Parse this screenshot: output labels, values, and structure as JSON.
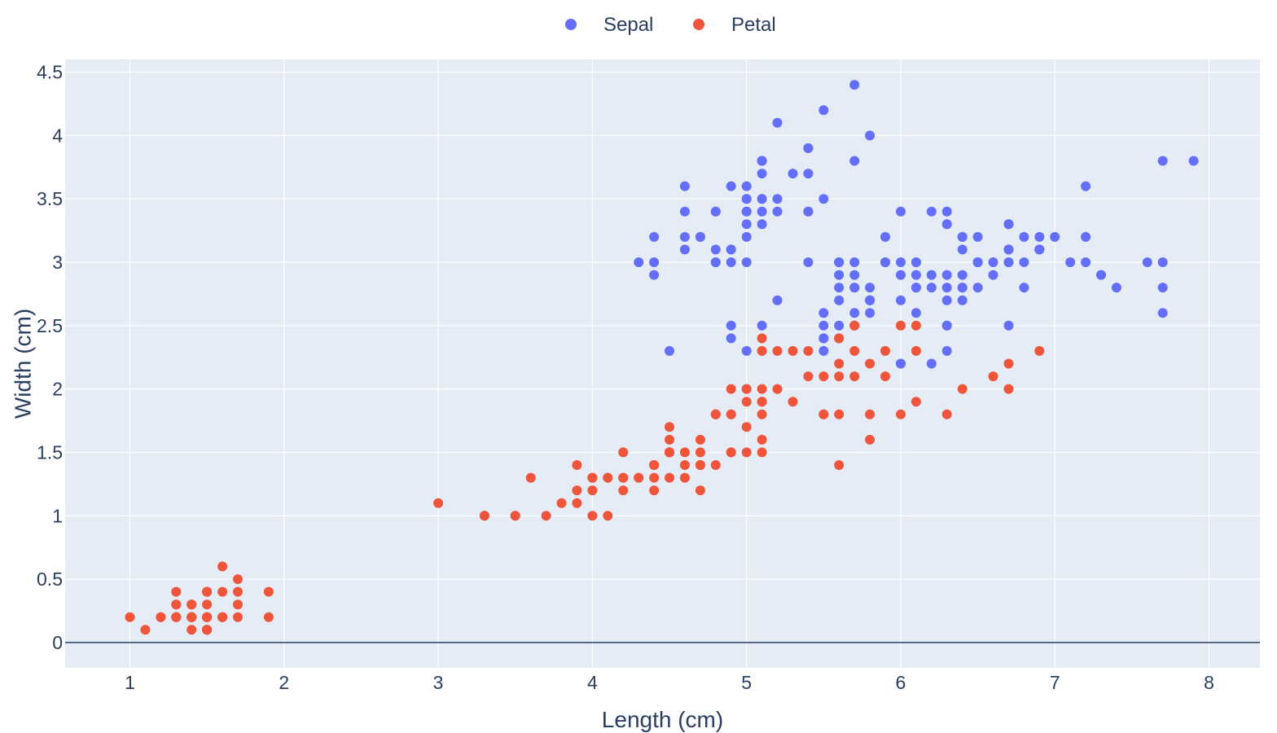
{
  "chart_data": {
    "type": "scatter",
    "xlabel": "Length (cm)",
    "ylabel": "Width (cm)",
    "xlim": [
      0.58,
      8.33
    ],
    "ylim": [
      -0.2,
      4.6
    ],
    "x_ticks": [
      1,
      2,
      3,
      4,
      5,
      6,
      7,
      8
    ],
    "y_ticks": [
      0,
      0.5,
      1,
      1.5,
      2,
      2.5,
      3,
      3.5,
      4,
      4.5
    ],
    "y_tick_labels": [
      "0",
      "0.5",
      "1",
      "1.5",
      "2",
      "2.5",
      "3",
      "3.5",
      "4",
      "4.5"
    ],
    "grid": true,
    "legend_position": "top-center",
    "colors": {
      "plot_bg": "#e5ecf6",
      "grid": "#ffffff",
      "zeroline": "#2a3f5f",
      "text": "#2a3f5f"
    },
    "series": [
      {
        "name": "Sepal",
        "color": "#636efa",
        "points": [
          [
            5.1,
            3.5
          ],
          [
            4.9,
            3.0
          ],
          [
            4.7,
            3.2
          ],
          [
            4.6,
            3.1
          ],
          [
            5.0,
            3.6
          ],
          [
            5.4,
            3.9
          ],
          [
            4.6,
            3.4
          ],
          [
            5.0,
            3.4
          ],
          [
            4.4,
            2.9
          ],
          [
            4.9,
            3.1
          ],
          [
            5.4,
            3.7
          ],
          [
            4.8,
            3.4
          ],
          [
            4.8,
            3.0
          ],
          [
            4.3,
            3.0
          ],
          [
            5.8,
            4.0
          ],
          [
            5.7,
            4.4
          ],
          [
            5.4,
            3.9
          ],
          [
            5.1,
            3.5
          ],
          [
            5.7,
            3.8
          ],
          [
            5.1,
            3.8
          ],
          [
            5.4,
            3.4
          ],
          [
            5.1,
            3.7
          ],
          [
            4.6,
            3.6
          ],
          [
            5.1,
            3.3
          ],
          [
            4.8,
            3.4
          ],
          [
            5.0,
            3.0
          ],
          [
            5.0,
            3.4
          ],
          [
            5.2,
            3.5
          ],
          [
            5.2,
            3.4
          ],
          [
            4.7,
            3.2
          ],
          [
            4.8,
            3.1
          ],
          [
            5.4,
            3.4
          ],
          [
            5.2,
            4.1
          ],
          [
            5.5,
            4.2
          ],
          [
            4.9,
            3.1
          ],
          [
            5.0,
            3.2
          ],
          [
            5.5,
            3.5
          ],
          [
            4.9,
            3.6
          ],
          [
            4.4,
            3.0
          ],
          [
            5.1,
            3.4
          ],
          [
            5.0,
            3.5
          ],
          [
            4.5,
            2.3
          ],
          [
            4.4,
            3.2
          ],
          [
            5.0,
            3.5
          ],
          [
            5.1,
            3.8
          ],
          [
            4.8,
            3.0
          ],
          [
            5.1,
            3.8
          ],
          [
            4.6,
            3.2
          ],
          [
            5.3,
            3.7
          ],
          [
            5.0,
            3.3
          ],
          [
            7.0,
            3.2
          ],
          [
            6.4,
            3.2
          ],
          [
            6.9,
            3.1
          ],
          [
            5.5,
            2.3
          ],
          [
            6.5,
            2.8
          ],
          [
            5.7,
            2.8
          ],
          [
            6.3,
            3.3
          ],
          [
            4.9,
            2.4
          ],
          [
            6.6,
            2.9
          ],
          [
            5.2,
            2.7
          ],
          [
            5.0,
            2.0
          ],
          [
            5.9,
            3.0
          ],
          [
            6.0,
            2.2
          ],
          [
            6.1,
            2.9
          ],
          [
            5.6,
            2.9
          ],
          [
            6.7,
            3.1
          ],
          [
            5.6,
            3.0
          ],
          [
            5.8,
            2.7
          ],
          [
            6.2,
            2.2
          ],
          [
            5.6,
            2.5
          ],
          [
            5.9,
            3.2
          ],
          [
            6.1,
            2.8
          ],
          [
            6.3,
            2.5
          ],
          [
            6.1,
            2.8
          ],
          [
            6.4,
            2.9
          ],
          [
            6.6,
            3.0
          ],
          [
            6.8,
            2.8
          ],
          [
            6.7,
            3.0
          ],
          [
            6.0,
            2.9
          ],
          [
            5.7,
            2.6
          ],
          [
            5.5,
            2.4
          ],
          [
            5.5,
            2.4
          ],
          [
            5.8,
            2.7
          ],
          [
            6.0,
            2.7
          ],
          [
            5.4,
            3.0
          ],
          [
            6.0,
            3.4
          ],
          [
            6.7,
            3.1
          ],
          [
            6.3,
            2.3
          ],
          [
            5.6,
            3.0
          ],
          [
            5.5,
            2.5
          ],
          [
            5.5,
            2.6
          ],
          [
            6.1,
            3.0
          ],
          [
            5.8,
            2.6
          ],
          [
            5.0,
            2.3
          ],
          [
            5.6,
            2.7
          ],
          [
            5.7,
            3.0
          ],
          [
            5.7,
            2.9
          ],
          [
            6.2,
            2.9
          ],
          [
            5.1,
            2.5
          ],
          [
            5.7,
            2.8
          ],
          [
            6.3,
            3.3
          ],
          [
            5.8,
            2.7
          ],
          [
            7.1,
            3.0
          ],
          [
            6.3,
            2.9
          ],
          [
            6.5,
            3.0
          ],
          [
            7.6,
            3.0
          ],
          [
            4.9,
            2.5
          ],
          [
            7.3,
            2.9
          ],
          [
            6.7,
            2.5
          ],
          [
            7.2,
            3.6
          ],
          [
            6.5,
            3.2
          ],
          [
            6.4,
            2.7
          ],
          [
            6.8,
            3.0
          ],
          [
            5.7,
            2.5
          ],
          [
            5.8,
            2.8
          ],
          [
            6.4,
            3.2
          ],
          [
            6.5,
            3.0
          ],
          [
            7.7,
            3.8
          ],
          [
            7.7,
            2.6
          ],
          [
            6.0,
            2.2
          ],
          [
            6.9,
            3.2
          ],
          [
            5.6,
            2.8
          ],
          [
            7.7,
            2.8
          ],
          [
            6.3,
            2.7
          ],
          [
            6.7,
            3.3
          ],
          [
            7.2,
            3.2
          ],
          [
            6.2,
            2.8
          ],
          [
            6.1,
            3.0
          ],
          [
            6.4,
            2.8
          ],
          [
            7.2,
            3.0
          ],
          [
            7.4,
            2.8
          ],
          [
            7.9,
            3.8
          ],
          [
            6.4,
            2.8
          ],
          [
            6.3,
            2.8
          ],
          [
            6.1,
            2.6
          ],
          [
            7.7,
            3.0
          ],
          [
            6.3,
            3.4
          ],
          [
            6.4,
            3.1
          ],
          [
            6.0,
            3.0
          ],
          [
            6.9,
            3.1
          ],
          [
            6.7,
            3.1
          ],
          [
            6.9,
            3.1
          ],
          [
            5.8,
            2.7
          ],
          [
            6.8,
            3.2
          ],
          [
            6.7,
            3.3
          ],
          [
            6.7,
            3.0
          ],
          [
            6.3,
            2.5
          ],
          [
            6.5,
            3.0
          ],
          [
            6.2,
            3.4
          ],
          [
            5.9,
            3.0
          ]
        ]
      },
      {
        "name": "Petal",
        "color": "#ef553b",
        "points": [
          [
            1.4,
            0.2
          ],
          [
            1.4,
            0.2
          ],
          [
            1.3,
            0.2
          ],
          [
            1.5,
            0.2
          ],
          [
            1.4,
            0.2
          ],
          [
            1.7,
            0.4
          ],
          [
            1.4,
            0.3
          ],
          [
            1.5,
            0.2
          ],
          [
            1.4,
            0.2
          ],
          [
            1.5,
            0.1
          ],
          [
            1.5,
            0.2
          ],
          [
            1.6,
            0.2
          ],
          [
            1.4,
            0.1
          ],
          [
            1.1,
            0.1
          ],
          [
            1.2,
            0.2
          ],
          [
            1.5,
            0.4
          ],
          [
            1.3,
            0.4
          ],
          [
            1.4,
            0.3
          ],
          [
            1.7,
            0.3
          ],
          [
            1.5,
            0.3
          ],
          [
            1.7,
            0.2
          ],
          [
            1.5,
            0.4
          ],
          [
            1.0,
            0.2
          ],
          [
            1.7,
            0.5
          ],
          [
            1.9,
            0.2
          ],
          [
            1.6,
            0.2
          ],
          [
            1.6,
            0.4
          ],
          [
            1.5,
            0.2
          ],
          [
            1.4,
            0.2
          ],
          [
            1.6,
            0.2
          ],
          [
            1.6,
            0.2
          ],
          [
            1.5,
            0.4
          ],
          [
            1.5,
            0.1
          ],
          [
            1.4,
            0.2
          ],
          [
            1.5,
            0.1
          ],
          [
            1.2,
            0.2
          ],
          [
            1.3,
            0.2
          ],
          [
            1.5,
            0.1
          ],
          [
            1.3,
            0.2
          ],
          [
            1.5,
            0.2
          ],
          [
            1.3,
            0.3
          ],
          [
            1.3,
            0.3
          ],
          [
            1.3,
            0.2
          ],
          [
            1.6,
            0.6
          ],
          [
            1.9,
            0.4
          ],
          [
            1.4,
            0.3
          ],
          [
            1.6,
            0.2
          ],
          [
            1.4,
            0.2
          ],
          [
            1.5,
            0.2
          ],
          [
            1.4,
            0.2
          ],
          [
            4.7,
            1.4
          ],
          [
            4.5,
            1.5
          ],
          [
            4.9,
            1.5
          ],
          [
            4.0,
            1.3
          ],
          [
            4.6,
            1.5
          ],
          [
            4.5,
            1.3
          ],
          [
            4.7,
            1.6
          ],
          [
            3.3,
            1.0
          ],
          [
            4.6,
            1.3
          ],
          [
            3.9,
            1.4
          ],
          [
            3.5,
            1.0
          ],
          [
            4.2,
            1.5
          ],
          [
            4.0,
            1.0
          ],
          [
            4.7,
            1.4
          ],
          [
            3.6,
            1.3
          ],
          [
            4.4,
            1.4
          ],
          [
            4.5,
            1.5
          ],
          [
            4.1,
            1.0
          ],
          [
            4.5,
            1.5
          ],
          [
            3.9,
            1.1
          ],
          [
            4.8,
            1.8
          ],
          [
            4.0,
            1.3
          ],
          [
            4.9,
            1.5
          ],
          [
            4.7,
            1.2
          ],
          [
            4.3,
            1.3
          ],
          [
            4.4,
            1.4
          ],
          [
            4.8,
            1.4
          ],
          [
            5.0,
            1.7
          ],
          [
            4.5,
            1.5
          ],
          [
            3.5,
            1.0
          ],
          [
            3.8,
            1.1
          ],
          [
            3.7,
            1.0
          ],
          [
            3.9,
            1.2
          ],
          [
            5.1,
            1.6
          ],
          [
            4.5,
            1.5
          ],
          [
            4.5,
            1.6
          ],
          [
            4.7,
            1.5
          ],
          [
            4.4,
            1.3
          ],
          [
            4.1,
            1.3
          ],
          [
            4.0,
            1.3
          ],
          [
            4.4,
            1.2
          ],
          [
            4.6,
            1.4
          ],
          [
            4.0,
            1.2
          ],
          [
            3.3,
            1.0
          ],
          [
            4.2,
            1.3
          ],
          [
            4.2,
            1.2
          ],
          [
            4.2,
            1.3
          ],
          [
            4.3,
            1.3
          ],
          [
            3.0,
            1.1
          ],
          [
            4.1,
            1.3
          ],
          [
            6.0,
            2.5
          ],
          [
            5.1,
            1.9
          ],
          [
            5.9,
            2.1
          ],
          [
            5.6,
            1.8
          ],
          [
            5.8,
            2.2
          ],
          [
            6.6,
            2.1
          ],
          [
            4.5,
            1.7
          ],
          [
            6.3,
            1.8
          ],
          [
            5.8,
            1.8
          ],
          [
            6.1,
            2.5
          ],
          [
            5.1,
            2.0
          ],
          [
            5.3,
            1.9
          ],
          [
            5.5,
            2.1
          ],
          [
            5.0,
            2.0
          ],
          [
            5.1,
            2.4
          ],
          [
            5.3,
            2.3
          ],
          [
            5.5,
            1.8
          ],
          [
            6.7,
            2.2
          ],
          [
            6.9,
            2.3
          ],
          [
            5.0,
            1.5
          ],
          [
            5.7,
            2.3
          ],
          [
            4.9,
            2.0
          ],
          [
            6.7,
            2.0
          ],
          [
            4.9,
            1.8
          ],
          [
            5.7,
            2.1
          ],
          [
            6.0,
            1.8
          ],
          [
            4.8,
            1.8
          ],
          [
            4.9,
            1.8
          ],
          [
            5.6,
            2.1
          ],
          [
            5.8,
            1.6
          ],
          [
            6.1,
            1.9
          ],
          [
            6.4,
            2.0
          ],
          [
            5.6,
            2.2
          ],
          [
            5.1,
            1.5
          ],
          [
            5.6,
            1.4
          ],
          [
            6.1,
            2.3
          ],
          [
            5.6,
            2.4
          ],
          [
            5.5,
            1.8
          ],
          [
            4.8,
            1.8
          ],
          [
            5.4,
            2.1
          ],
          [
            5.6,
            2.4
          ],
          [
            5.1,
            2.3
          ],
          [
            5.1,
            1.9
          ],
          [
            5.9,
            2.3
          ],
          [
            5.7,
            2.5
          ],
          [
            5.2,
            2.3
          ],
          [
            5.0,
            1.9
          ],
          [
            5.2,
            2.0
          ],
          [
            5.4,
            2.3
          ],
          [
            5.1,
            1.8
          ]
        ]
      }
    ]
  }
}
